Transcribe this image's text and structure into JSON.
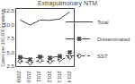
{
  "chart_data": {
    "type": "line",
    "title": "Extrapulmonary NTM",
    "ylabel": "Cases per 100,000 inpatients",
    "x": [
      2009,
      2010,
      2011,
      2012,
      2013,
      2014
    ],
    "series": [
      {
        "name": "Total",
        "color": "#444444",
        "line_style": "solid",
        "values": [
          10.8,
          9.9,
          10.8,
          10.75,
          11.0,
          12.3
        ]
      },
      {
        "name": "Disseminated",
        "color": "#444444",
        "line_style": "dashed",
        "marker": "x",
        "values": [
          4.1,
          3.7,
          4.2,
          4.0,
          4.3,
          5.0
        ]
      },
      {
        "name": "SST",
        "color": "#444444",
        "line_style": "dotted",
        "marker": "diamond",
        "values": [
          3.4,
          3.1,
          3.5,
          3.3,
          3.7,
          4.1
        ]
      }
    ],
    "xlim": [
      2008.6,
      2014.4
    ],
    "xticks": [
      2009,
      2010,
      2011,
      2012,
      2013,
      2014
    ],
    "ylim": [
      2.5,
      12.8
    ],
    "yticks": [
      2.5,
      {
        "value": 5.0,
        "label": "5.0"
      },
      7.5,
      {
        "value": 10.0,
        "label": "10.0"
      },
      12.5
    ],
    "grid": false,
    "legend": "right"
  }
}
